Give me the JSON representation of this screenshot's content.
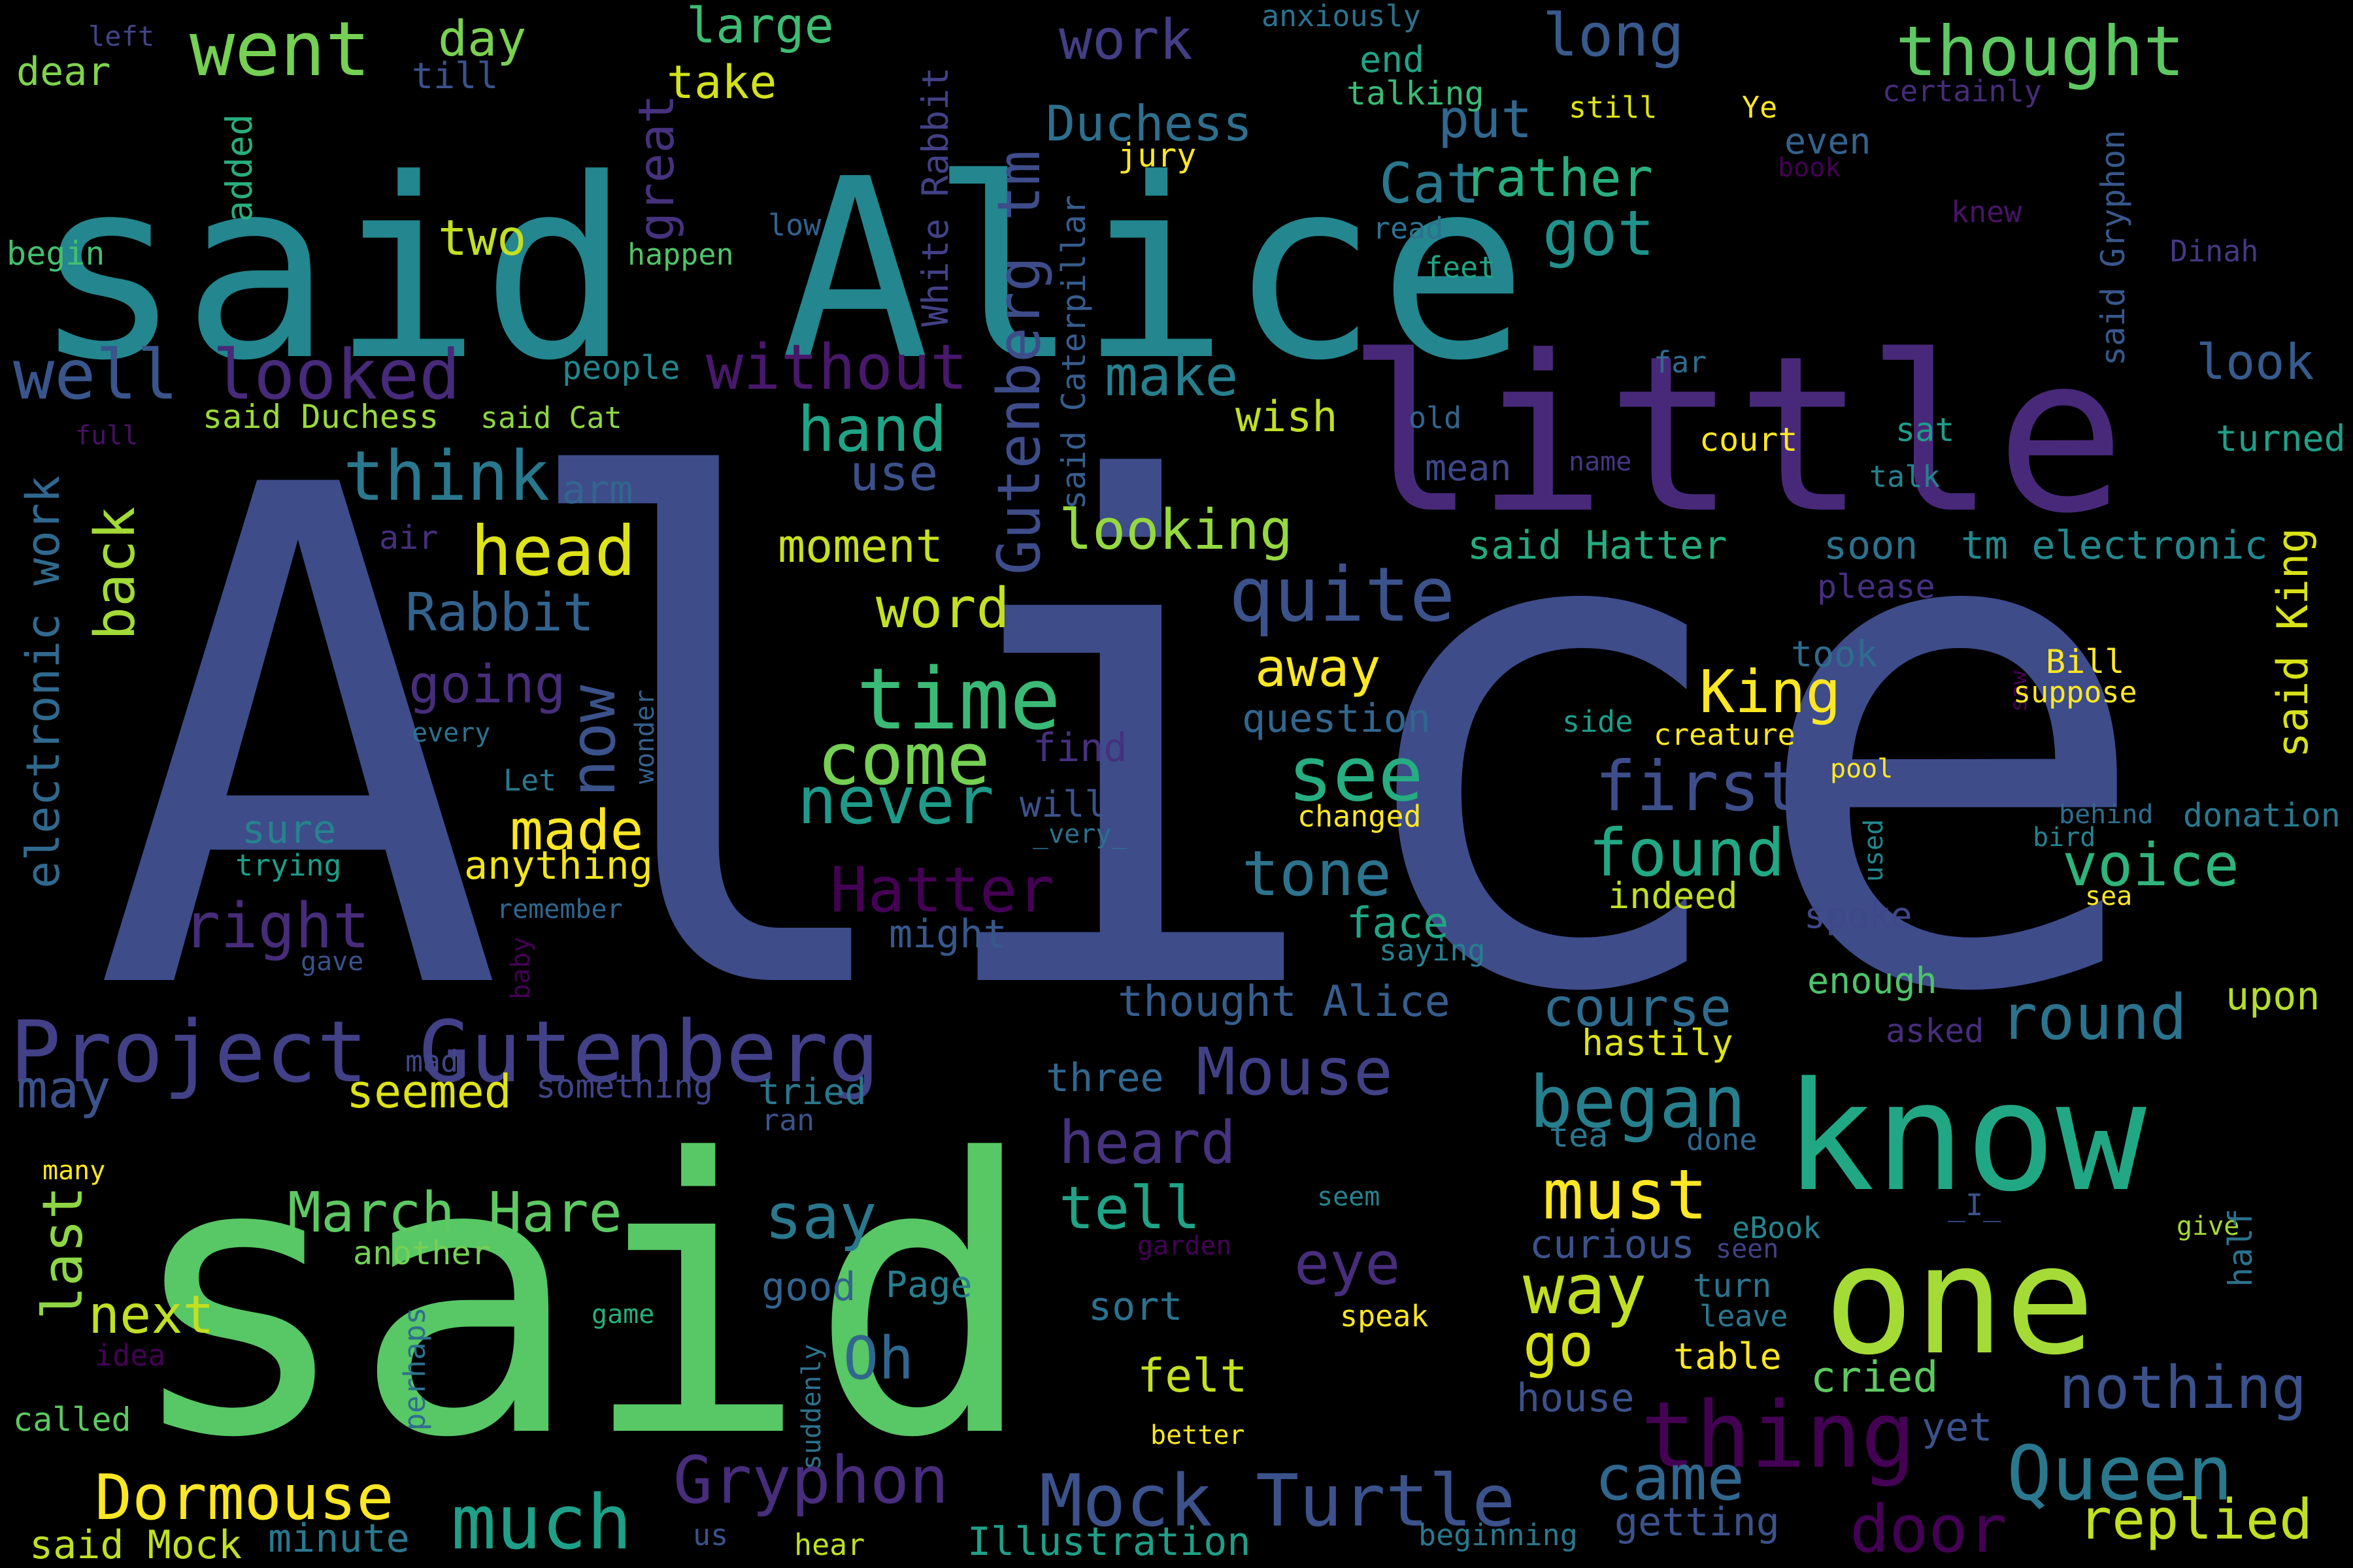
{
  "cloud": {
    "background": "#000000",
    "words": [
      {
        "text": "Alice",
        "color": "#3e4c8a"
      },
      {
        "text": "said",
        "color": "#58c765"
      },
      {
        "text": "said Alice",
        "color": "#24868e"
      },
      {
        "text": "little",
        "color": "#482979"
      },
      {
        "text": "know",
        "color": "#22a785"
      },
      {
        "text": "one",
        "color": "#a5db36"
      },
      {
        "text": "Project Gutenberg",
        "color": "#424086"
      },
      {
        "text": "went",
        "color": "#75d054"
      },
      {
        "text": "day",
        "color": "#7ad151"
      },
      {
        "text": "large",
        "color": "#3dbc74"
      },
      {
        "text": "work",
        "color": "#433e85"
      },
      {
        "text": "long",
        "color": "#38598c"
      },
      {
        "text": "thought",
        "color": "#5ec962"
      },
      {
        "text": "take",
        "color": "#d2e21b"
      },
      {
        "text": "put",
        "color": "#31688e"
      },
      {
        "text": "dear",
        "color": "#7fd34e"
      },
      {
        "text": "till",
        "color": "#3b528b"
      },
      {
        "text": "left",
        "color": "#414487"
      },
      {
        "text": "anxiously",
        "color": "#2c728e"
      },
      {
        "text": "end",
        "color": "#20a386"
      },
      {
        "text": "talking",
        "color": "#3aba76"
      },
      {
        "text": "still",
        "color": "#dde318"
      },
      {
        "text": "certainly",
        "color": "#472c7a"
      },
      {
        "text": "Duchess",
        "color": "#2e6f8e"
      },
      {
        "text": "jury",
        "color": "#fde725"
      },
      {
        "text": "Ye",
        "color": "#fde725"
      },
      {
        "text": "even",
        "color": "#33638d"
      },
      {
        "text": "book",
        "color": "#440154"
      },
      {
        "text": "added",
        "color": "#28ae80"
      },
      {
        "text": "White Rabbit",
        "color": "#424186"
      },
      {
        "text": "Gutenberg tm",
        "color": "#3e4c8a"
      },
      {
        "text": "great",
        "color": "#46327e"
      },
      {
        "text": "Cat",
        "color": "#2a788e"
      },
      {
        "text": "rather",
        "color": "#29af7f"
      },
      {
        "text": "low",
        "color": "#33628d"
      },
      {
        "text": "knew",
        "color": "#481467"
      },
      {
        "text": "said Gryphon",
        "color": "#38588c"
      },
      {
        "text": "Dinah",
        "color": "#443983"
      },
      {
        "text": "two",
        "color": "#c2df23"
      },
      {
        "text": "got",
        "color": "#21918c"
      },
      {
        "text": "read",
        "color": "#2c728e"
      },
      {
        "text": "begin",
        "color": "#43bf71"
      },
      {
        "text": "happen",
        "color": "#50c46a"
      },
      {
        "text": "feet",
        "color": "#21a585"
      },
      {
        "text": "well",
        "color": "#39558c"
      },
      {
        "text": "looked",
        "color": "#472a7a"
      },
      {
        "text": "without",
        "color": "#48186a"
      },
      {
        "text": "make",
        "color": "#277f8e"
      },
      {
        "text": "look",
        "color": "#365c8d"
      },
      {
        "text": "far",
        "color": "#2f6c8e"
      },
      {
        "text": "people",
        "color": "#24868e"
      },
      {
        "text": "said Caterpillar",
        "color": "#365d8d"
      },
      {
        "text": "full",
        "color": "#471164"
      },
      {
        "text": "said Duchess",
        "color": "#9bd93c"
      },
      {
        "text": "said Cat",
        "color": "#8ed645"
      },
      {
        "text": "old",
        "color": "#32658e"
      },
      {
        "text": "wish",
        "color": "#c0df25"
      },
      {
        "text": "court",
        "color": "#fbe723"
      },
      {
        "text": "sat",
        "color": "#1f9e89"
      },
      {
        "text": "turned",
        "color": "#1fa088"
      },
      {
        "text": "hand",
        "color": "#20a486"
      },
      {
        "text": "think",
        "color": "#2a788e"
      },
      {
        "text": "arm",
        "color": "#32658e"
      },
      {
        "text": "use",
        "color": "#3b518b"
      },
      {
        "text": "mean",
        "color": "#3f4788"
      },
      {
        "text": "name",
        "color": "#453781"
      },
      {
        "text": "talk",
        "color": "#26828e"
      },
      {
        "text": "electronic work",
        "color": "#30698e"
      },
      {
        "text": "back",
        "color": "#a2da37"
      },
      {
        "text": "looking",
        "color": "#95d840"
      },
      {
        "text": "head",
        "color": "#dde318"
      },
      {
        "text": "air",
        "color": "#472f7d"
      },
      {
        "text": "moment",
        "color": "#c8e020"
      },
      {
        "text": "said Hatter",
        "color": "#25ab82"
      },
      {
        "text": "soon",
        "color": "#2c728e"
      },
      {
        "text": "tm electronic",
        "color": "#23898e"
      },
      {
        "text": "said King",
        "color": "#d8e219"
      },
      {
        "text": "quite",
        "color": "#3b528b"
      },
      {
        "text": "please",
        "color": "#46307e"
      },
      {
        "text": "Rabbit",
        "color": "#33638d"
      },
      {
        "text": "word",
        "color": "#c5e021"
      },
      {
        "text": "now",
        "color": "#3b528b"
      },
      {
        "text": "took",
        "color": "#2f6b8e"
      },
      {
        "text": "Bill",
        "color": "#fde725"
      },
      {
        "text": "saw",
        "color": "#440154"
      },
      {
        "text": "suppose",
        "color": "#fde725"
      },
      {
        "text": "going",
        "color": "#472d7b"
      },
      {
        "text": "wonder",
        "color": "#34618d"
      },
      {
        "text": "time",
        "color": "#3aba76"
      },
      {
        "text": "away",
        "color": "#fde725"
      },
      {
        "text": "King",
        "color": "#fde725"
      },
      {
        "text": "question",
        "color": "#31678e"
      },
      {
        "text": "side",
        "color": "#1e9c89"
      },
      {
        "text": "creature",
        "color": "#fde725"
      },
      {
        "text": "every",
        "color": "#2c728e"
      },
      {
        "text": "Let",
        "color": "#2a788e"
      },
      {
        "text": "come",
        "color": "#75d054"
      },
      {
        "text": "find",
        "color": "#46307e"
      },
      {
        "text": "see",
        "color": "#27ad81"
      },
      {
        "text": "first",
        "color": "#3d4e8a"
      },
      {
        "text": "pool",
        "color": "#fde725"
      },
      {
        "text": "used",
        "color": "#24868e"
      },
      {
        "text": "behind",
        "color": "#2e6e8e"
      },
      {
        "text": "donation",
        "color": "#2a788e"
      },
      {
        "text": "never",
        "color": "#1f9a8a"
      },
      {
        "text": "will",
        "color": "#3b528b"
      },
      {
        "text": "sure",
        "color": "#26828e"
      },
      {
        "text": "_very_",
        "color": "#2e6f8e"
      },
      {
        "text": "made",
        "color": "#fde725"
      },
      {
        "text": "changed",
        "color": "#fde725"
      },
      {
        "text": "bird",
        "color": "#26818e"
      },
      {
        "text": "trying",
        "color": "#1e9d89"
      },
      {
        "text": "found",
        "color": "#22a884"
      },
      {
        "text": "anything",
        "color": "#f1e51d"
      },
      {
        "text": "tone",
        "color": "#2c738e"
      },
      {
        "text": "voice",
        "color": "#2fb47c"
      },
      {
        "text": "Hatter",
        "color": "#440154"
      },
      {
        "text": "indeed",
        "color": "#c2df23"
      },
      {
        "text": "right",
        "color": "#472c7a"
      },
      {
        "text": "remember",
        "color": "#31678e"
      },
      {
        "text": "face",
        "color": "#21a685"
      },
      {
        "text": "gave",
        "color": "#3b528b"
      },
      {
        "text": "might",
        "color": "#38588c"
      },
      {
        "text": "saying",
        "color": "#277f8e"
      },
      {
        "text": "spoke",
        "color": "#3f4889"
      },
      {
        "text": "sea",
        "color": "#fde725"
      },
      {
        "text": "baby",
        "color": "#440154"
      },
      {
        "text": "thought Alice",
        "color": "#365d8d"
      },
      {
        "text": "course",
        "color": "#2f6c8e"
      },
      {
        "text": "enough",
        "color": "#4ec36b"
      },
      {
        "text": "round",
        "color": "#2c738e"
      },
      {
        "text": "upon",
        "color": "#b5de2b"
      },
      {
        "text": "asked",
        "color": "#472d7b"
      },
      {
        "text": "hastily",
        "color": "#dde318"
      },
      {
        "text": "may",
        "color": "#3b528b"
      },
      {
        "text": "mad",
        "color": "#3f4788"
      },
      {
        "text": "seemed",
        "color": "#dde318"
      },
      {
        "text": "something",
        "color": "#414487"
      },
      {
        "text": "Mouse",
        "color": "#424186"
      },
      {
        "text": "three",
        "color": "#31678e"
      },
      {
        "text": "began",
        "color": "#277f8e"
      },
      {
        "text": "tried",
        "color": "#2a788e"
      },
      {
        "text": "ran",
        "color": "#3b528b"
      },
      {
        "text": "heard",
        "color": "#46327e"
      },
      {
        "text": "tea",
        "color": "#2a788e"
      },
      {
        "text": "done",
        "color": "#31678e"
      },
      {
        "text": "many",
        "color": "#fde725"
      },
      {
        "text": "March Hare",
        "color": "#5ec962"
      },
      {
        "text": "say",
        "color": "#2a788e"
      },
      {
        "text": "tell",
        "color": "#20a386"
      },
      {
        "text": "must",
        "color": "#fde725"
      },
      {
        "text": "seem",
        "color": "#26828e"
      },
      {
        "text": "eBook",
        "color": "#25848e"
      },
      {
        "text": "_I_",
        "color": "#3b528b"
      },
      {
        "text": "give",
        "color": "#a5db36"
      },
      {
        "text": "half",
        "color": "#2c728e"
      },
      {
        "text": "another",
        "color": "#75d054"
      },
      {
        "text": "last",
        "color": "#8ed645"
      },
      {
        "text": "garden",
        "color": "#440154"
      },
      {
        "text": "eye",
        "color": "#472d7b"
      },
      {
        "text": "curious",
        "color": "#3b528b"
      },
      {
        "text": "seen",
        "color": "#424186"
      },
      {
        "text": "next",
        "color": "#c2df23"
      },
      {
        "text": "good",
        "color": "#33638d"
      },
      {
        "text": "Page",
        "color": "#277f8e"
      },
      {
        "text": "way",
        "color": "#c2df23"
      },
      {
        "text": "sort",
        "color": "#2c728e"
      },
      {
        "text": "turn",
        "color": "#2c738e"
      },
      {
        "text": "leave",
        "color": "#2a788e"
      },
      {
        "text": "game",
        "color": "#27ad81"
      },
      {
        "text": "speak",
        "color": "#fde725"
      },
      {
        "text": "Oh",
        "color": "#31678e"
      },
      {
        "text": "go",
        "color": "#d8e219"
      },
      {
        "text": "perhaps",
        "color": "#2e6f8e"
      },
      {
        "text": "idea",
        "color": "#440154"
      },
      {
        "text": "felt",
        "color": "#c5e021"
      },
      {
        "text": "table",
        "color": "#fde725"
      },
      {
        "text": "cried",
        "color": "#5ec962"
      },
      {
        "text": "nothing",
        "color": "#3b528b"
      },
      {
        "text": "called",
        "color": "#5ec962"
      },
      {
        "text": "suddenly",
        "color": "#2c728e"
      },
      {
        "text": "better",
        "color": "#fde725"
      },
      {
        "text": "thing",
        "color": "#440154"
      },
      {
        "text": "house",
        "color": "#3b528b"
      },
      {
        "text": "yet",
        "color": "#3b528b"
      },
      {
        "text": "Queen",
        "color": "#2a788e"
      },
      {
        "text": "Dormouse",
        "color": "#fde725"
      },
      {
        "text": "Gryphon",
        "color": "#472d7b"
      },
      {
        "text": "Mock Turtle",
        "color": "#3b528b"
      },
      {
        "text": "came",
        "color": "#31678e"
      },
      {
        "text": "much",
        "color": "#1fa088"
      },
      {
        "text": "door",
        "color": "#440154"
      },
      {
        "text": "replied",
        "color": "#c2df23"
      },
      {
        "text": "said Mock",
        "color": "#c2df23"
      },
      {
        "text": "minute",
        "color": "#2a788e"
      },
      {
        "text": "us",
        "color": "#3b528b"
      },
      {
        "text": "hear",
        "color": "#c2df23"
      },
      {
        "text": "Illustration",
        "color": "#1fa088"
      },
      {
        "text": "beginning",
        "color": "#2a788e"
      },
      {
        "text": "getting",
        "color": "#3b528b"
      }
    ]
  }
}
